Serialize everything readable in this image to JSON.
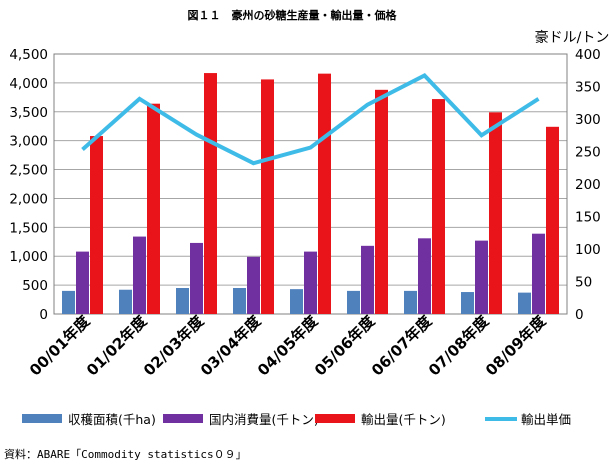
{
  "chart_data": {
    "type": "bar",
    "title": "図１１　豪州の砂糖生産量・輸出量・価格",
    "right_unit": "豪ドル/トン",
    "categories": [
      "00/01年度",
      "01/02年度",
      "02/03年度",
      "03/04年度",
      "04/05年度",
      "05/06年度",
      "06/07年度",
      "07/08年度",
      "08/09年度"
    ],
    "ylim": [
      0,
      4500
    ],
    "y_ticks": [
      "0",
      "500",
      "1,000",
      "1,500",
      "2,000",
      "2,500",
      "3,000",
      "3,500",
      "4,000",
      "4,500"
    ],
    "y2lim": [
      0,
      400
    ],
    "y2_ticks": [
      "0",
      "50",
      "100",
      "150",
      "200",
      "250",
      "300",
      "350",
      "400"
    ],
    "grid": true,
    "legend_position": "bottom",
    "series": [
      {
        "name": "収穫面積(千ha)",
        "kind": "bar",
        "axis": "left",
        "color": "#4f81bd",
        "values": [
          400,
          420,
          450,
          450,
          430,
          400,
          400,
          380,
          370
        ]
      },
      {
        "name": "国内消費量(千トン)",
        "kind": "bar",
        "axis": "left",
        "color": "#7030a0",
        "values": [
          1080,
          1340,
          1230,
          990,
          1080,
          1180,
          1310,
          1270,
          1390
        ]
      },
      {
        "name": "輸出量(千トン)",
        "kind": "bar",
        "axis": "left",
        "color": "#e8141a",
        "values": [
          3080,
          3640,
          4170,
          4060,
          4160,
          3880,
          3720,
          3490,
          3240
        ]
      },
      {
        "name": "輸出単価",
        "kind": "line",
        "axis": "right",
        "color": "#3fbbe8",
        "values": [
          253,
          331,
          276,
          232,
          256,
          322,
          367,
          275,
          331
        ]
      }
    ],
    "source": "資料：ABARE「Commodity statistics０９」"
  }
}
